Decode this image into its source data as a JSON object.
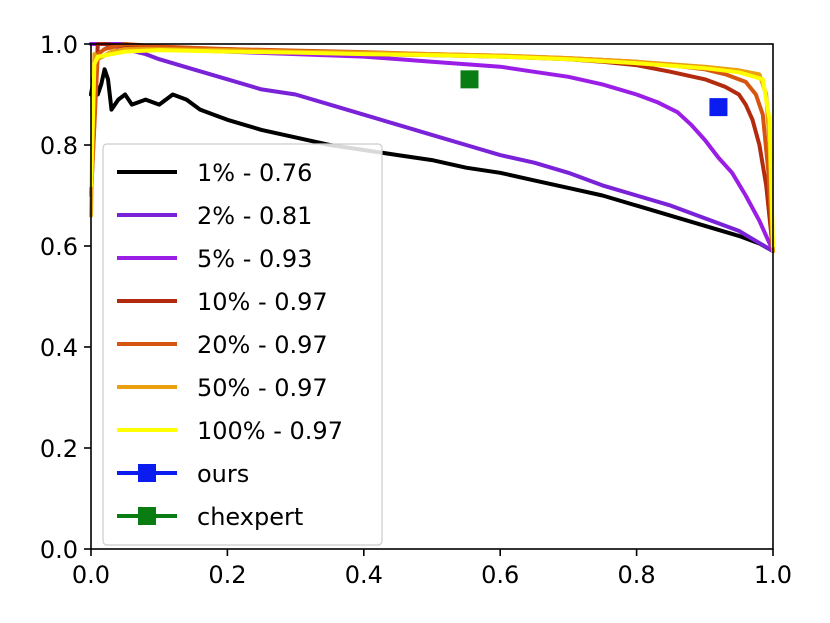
{
  "chart_data": {
    "type": "line",
    "title": "",
    "xlabel": "",
    "ylabel": "",
    "xlim": [
      0.0,
      1.0
    ],
    "ylim": [
      0.0,
      1.0
    ],
    "xticks": [
      "0.0",
      "0.2",
      "0.4",
      "0.6",
      "0.8",
      "1.0"
    ],
    "yticks": [
      "0.0",
      "0.2",
      "0.4",
      "0.6",
      "0.8",
      "1.0"
    ],
    "grid": false,
    "legend_position": "lower-left",
    "series": [
      {
        "name": "1% - 0.76",
        "color": "#000000",
        "x": [
          0.0,
          0.005,
          0.01,
          0.015,
          0.02,
          0.025,
          0.03,
          0.04,
          0.05,
          0.06,
          0.08,
          0.1,
          0.12,
          0.14,
          0.16,
          0.18,
          0.2,
          0.25,
          0.3,
          0.35,
          0.4,
          0.45,
          0.5,
          0.55,
          0.6,
          0.65,
          0.7,
          0.75,
          0.8,
          0.85,
          0.9,
          0.95,
          0.98,
          1.0
        ],
        "y": [
          0.9,
          0.94,
          0.9,
          0.92,
          0.95,
          0.93,
          0.87,
          0.89,
          0.9,
          0.88,
          0.89,
          0.88,
          0.9,
          0.89,
          0.87,
          0.86,
          0.85,
          0.83,
          0.815,
          0.8,
          0.79,
          0.78,
          0.77,
          0.755,
          0.745,
          0.73,
          0.715,
          0.7,
          0.68,
          0.66,
          0.64,
          0.62,
          0.605,
          0.59
        ]
      },
      {
        "name": "2% - 0.81",
        "color": "#7a22d8",
        "x": [
          0.0,
          0.02,
          0.05,
          0.08,
          0.1,
          0.15,
          0.2,
          0.25,
          0.3,
          0.35,
          0.4,
          0.45,
          0.5,
          0.55,
          0.6,
          0.65,
          0.7,
          0.75,
          0.8,
          0.85,
          0.9,
          0.95,
          1.0
        ],
        "y": [
          1.0,
          1.0,
          0.99,
          0.98,
          0.97,
          0.95,
          0.93,
          0.91,
          0.9,
          0.88,
          0.86,
          0.84,
          0.82,
          0.8,
          0.78,
          0.765,
          0.745,
          0.72,
          0.7,
          0.68,
          0.655,
          0.63,
          0.59
        ]
      },
      {
        "name": "5% - 0.93",
        "color": "#9a1ee6",
        "x": [
          0.0,
          0.05,
          0.1,
          0.2,
          0.3,
          0.4,
          0.5,
          0.55,
          0.6,
          0.65,
          0.7,
          0.75,
          0.8,
          0.83,
          0.86,
          0.88,
          0.9,
          0.92,
          0.94,
          0.96,
          0.98,
          1.0
        ],
        "y": [
          1.0,
          1.0,
          0.99,
          0.985,
          0.98,
          0.975,
          0.965,
          0.96,
          0.955,
          0.945,
          0.935,
          0.92,
          0.9,
          0.885,
          0.865,
          0.84,
          0.81,
          0.775,
          0.745,
          0.7,
          0.65,
          0.59
        ]
      },
      {
        "name": "10% - 0.97",
        "color": "#b22b0e",
        "x": [
          0.0,
          0.01,
          0.02,
          0.05,
          0.1,
          0.2,
          0.3,
          0.4,
          0.5,
          0.6,
          0.7,
          0.75,
          0.8,
          0.85,
          0.9,
          0.93,
          0.95,
          0.96,
          0.97,
          0.98,
          0.99,
          1.0
        ],
        "y": [
          0.7,
          1.0,
          1.0,
          0.995,
          0.99,
          0.99,
          0.985,
          0.98,
          0.978,
          0.975,
          0.97,
          0.965,
          0.958,
          0.945,
          0.93,
          0.915,
          0.9,
          0.88,
          0.85,
          0.8,
          0.72,
          0.59
        ]
      },
      {
        "name": "20% - 0.97",
        "color": "#d65511",
        "x": [
          0.0,
          0.01,
          0.02,
          0.05,
          0.1,
          0.2,
          0.3,
          0.4,
          0.5,
          0.6,
          0.7,
          0.8,
          0.85,
          0.9,
          0.93,
          0.96,
          0.975,
          0.985,
          0.993,
          1.0
        ],
        "y": [
          0.7,
          0.98,
          0.99,
          1.0,
          0.995,
          0.99,
          0.987,
          0.984,
          0.98,
          0.977,
          0.972,
          0.965,
          0.958,
          0.95,
          0.94,
          0.925,
          0.9,
          0.86,
          0.75,
          0.59
        ]
      },
      {
        "name": "50% - 0.97",
        "color": "#eba10f",
        "x": [
          0.0,
          0.005,
          0.01,
          0.03,
          0.05,
          0.1,
          0.2,
          0.3,
          0.4,
          0.5,
          0.6,
          0.7,
          0.8,
          0.9,
          0.95,
          0.98,
          0.99,
          0.995,
          1.0
        ],
        "y": [
          0.66,
          0.98,
          0.97,
          0.985,
          0.99,
          0.99,
          0.988,
          0.985,
          0.983,
          0.98,
          0.977,
          0.972,
          0.965,
          0.955,
          0.948,
          0.94,
          0.9,
          0.8,
          0.59
        ]
      },
      {
        "name": "100% - 0.97",
        "color": "#ffff00",
        "x": [
          0.0,
          0.005,
          0.01,
          0.03,
          0.05,
          0.1,
          0.2,
          0.3,
          0.4,
          0.5,
          0.6,
          0.7,
          0.8,
          0.9,
          0.95,
          0.985,
          0.995,
          1.0
        ],
        "y": [
          0.72,
          0.96,
          0.975,
          0.98,
          0.985,
          0.988,
          0.985,
          0.983,
          0.98,
          0.978,
          0.975,
          0.97,
          0.962,
          0.952,
          0.944,
          0.93,
          0.85,
          0.6
        ]
      }
    ],
    "points": [
      {
        "name": "ours",
        "color": "#0a1cf0",
        "x": 0.92,
        "y": 0.875
      },
      {
        "name": "chexpert",
        "color": "#0a7d12",
        "x": 0.555,
        "y": 0.93
      }
    ]
  }
}
